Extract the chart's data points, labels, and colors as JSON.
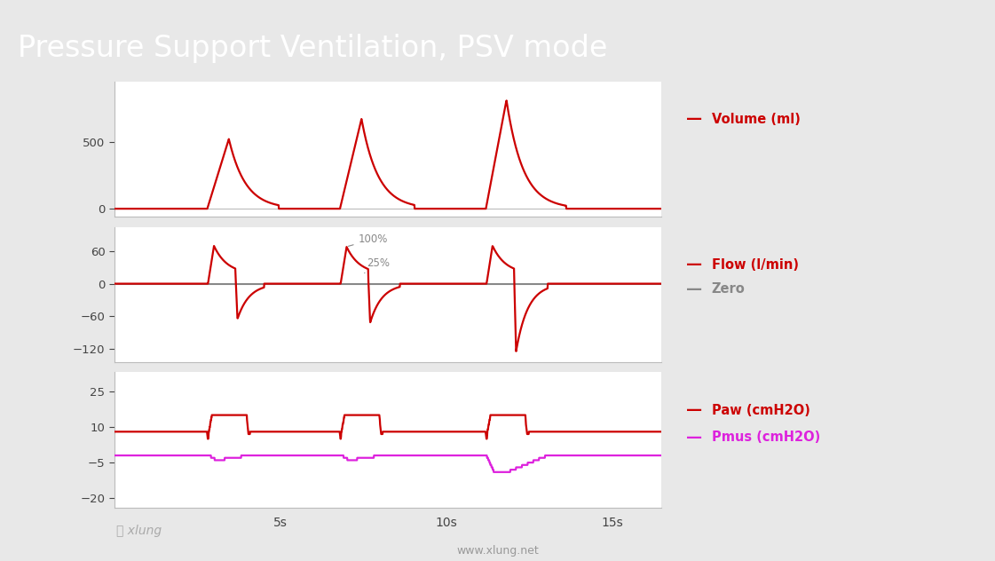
{
  "title": "Pressure Support Ventilation, PSV mode",
  "title_bg": "#c00000",
  "title_color": "#ffffff",
  "bg_color": "#e8e8e8",
  "plot_bg": "#ffffff",
  "red_color": "#cc0000",
  "gray_color": "#888888",
  "magenta_color": "#dd22dd",
  "website": "www.xlung.net",
  "vol_ylim": [
    -60,
    950
  ],
  "vol_yticks": [
    0,
    500
  ],
  "flow_ylim": [
    -145,
    105
  ],
  "flow_yticks": [
    -120,
    -60,
    0,
    60
  ],
  "paw_ylim": [
    -24,
    33
  ],
  "paw_yticks": [
    -20,
    -5,
    10,
    25
  ],
  "annotation_100": "100%",
  "annotation_25": "25%",
  "xlim": [
    0,
    16.5
  ],
  "xticks": [
    0,
    5,
    10,
    15
  ],
  "xticklabels": [
    "",
    "5s",
    "10s",
    "15s"
  ]
}
